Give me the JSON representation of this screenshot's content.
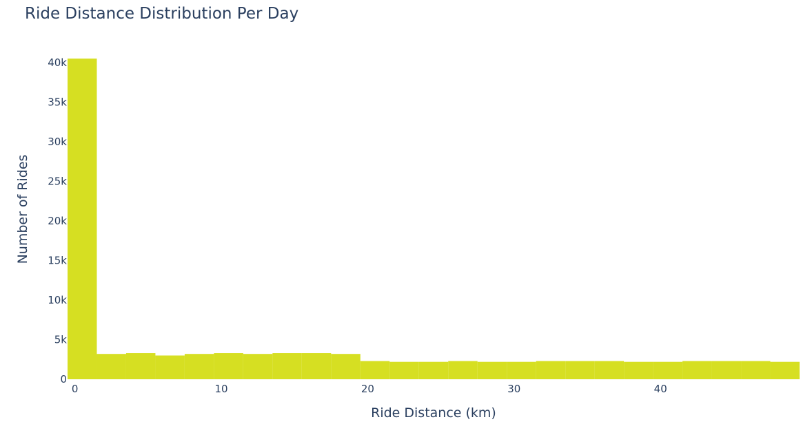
{
  "chart_data": {
    "type": "bar",
    "title": "Ride Distance Distribution Per Day",
    "xlabel": "Ride Distance (km)",
    "ylabel": "Number of Rides",
    "bin_width": 2,
    "x": [
      0,
      2,
      4,
      6,
      8,
      10,
      12,
      14,
      16,
      18,
      20,
      22,
      24,
      26,
      28,
      30,
      32,
      34,
      36,
      38,
      40,
      42,
      44,
      46,
      48
    ],
    "values": [
      40500,
      3200,
      3300,
      3000,
      3200,
      3300,
      3200,
      3300,
      3300,
      3200,
      2300,
      2200,
      2200,
      2300,
      2200,
      2200,
      2300,
      2300,
      2300,
      2200,
      2200,
      2300,
      2300,
      2300,
      2200
    ],
    "xlim": [
      -0.5,
      49.5
    ],
    "ylim": [
      0,
      40600
    ],
    "x_ticks": [
      0,
      10,
      20,
      30,
      40
    ],
    "x_tick_labels": [
      "0",
      "10",
      "20",
      "30",
      "40"
    ],
    "y_ticks": [
      0,
      5000,
      10000,
      15000,
      20000,
      25000,
      30000,
      35000,
      40000
    ],
    "y_tick_labels": [
      "0",
      "5k",
      "10k",
      "15k",
      "20k",
      "25k",
      "30k",
      "35k",
      "40k"
    ],
    "grid": false,
    "bar_color": "#d6df22"
  }
}
